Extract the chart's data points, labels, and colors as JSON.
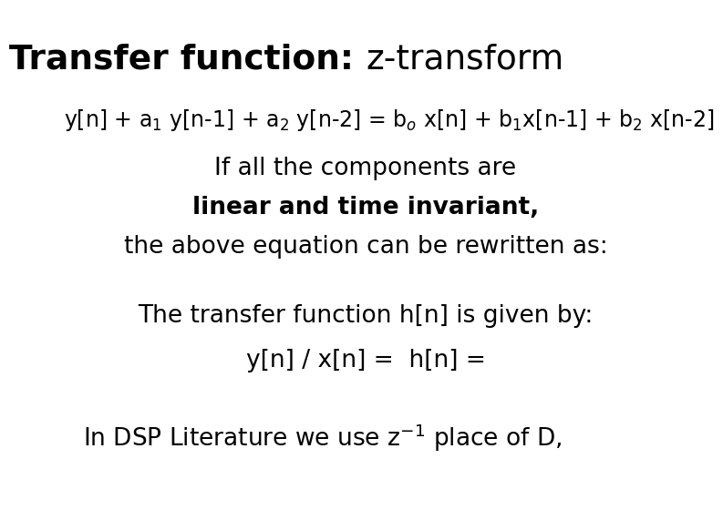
{
  "background_color": "#ffffff",
  "text_color": "#000000",
  "title_bold": "Transfer function: ",
  "title_normal": "z-transform",
  "title_fontsize": 27,
  "eq_text": "y[n] + a$_1$ y[n-1] + a$_2$ y[n-2] = b$_o$ x[n] + b$_1$x[n-1] + b$_2$ x[n-2]",
  "eq_fontsize": 17,
  "line2": "If all the components are",
  "line3": "linear and time invariant,",
  "line4": "the above equation can be rewritten as:",
  "line5": "The transfer function h[n] is given by:",
  "line6": "y[n] / x[n] =  h[n] =",
  "line7": "In DSP Literature we use z$^{-1}$ place of D,",
  "body_fontsize": 19,
  "font_family": "DejaVu Sans"
}
